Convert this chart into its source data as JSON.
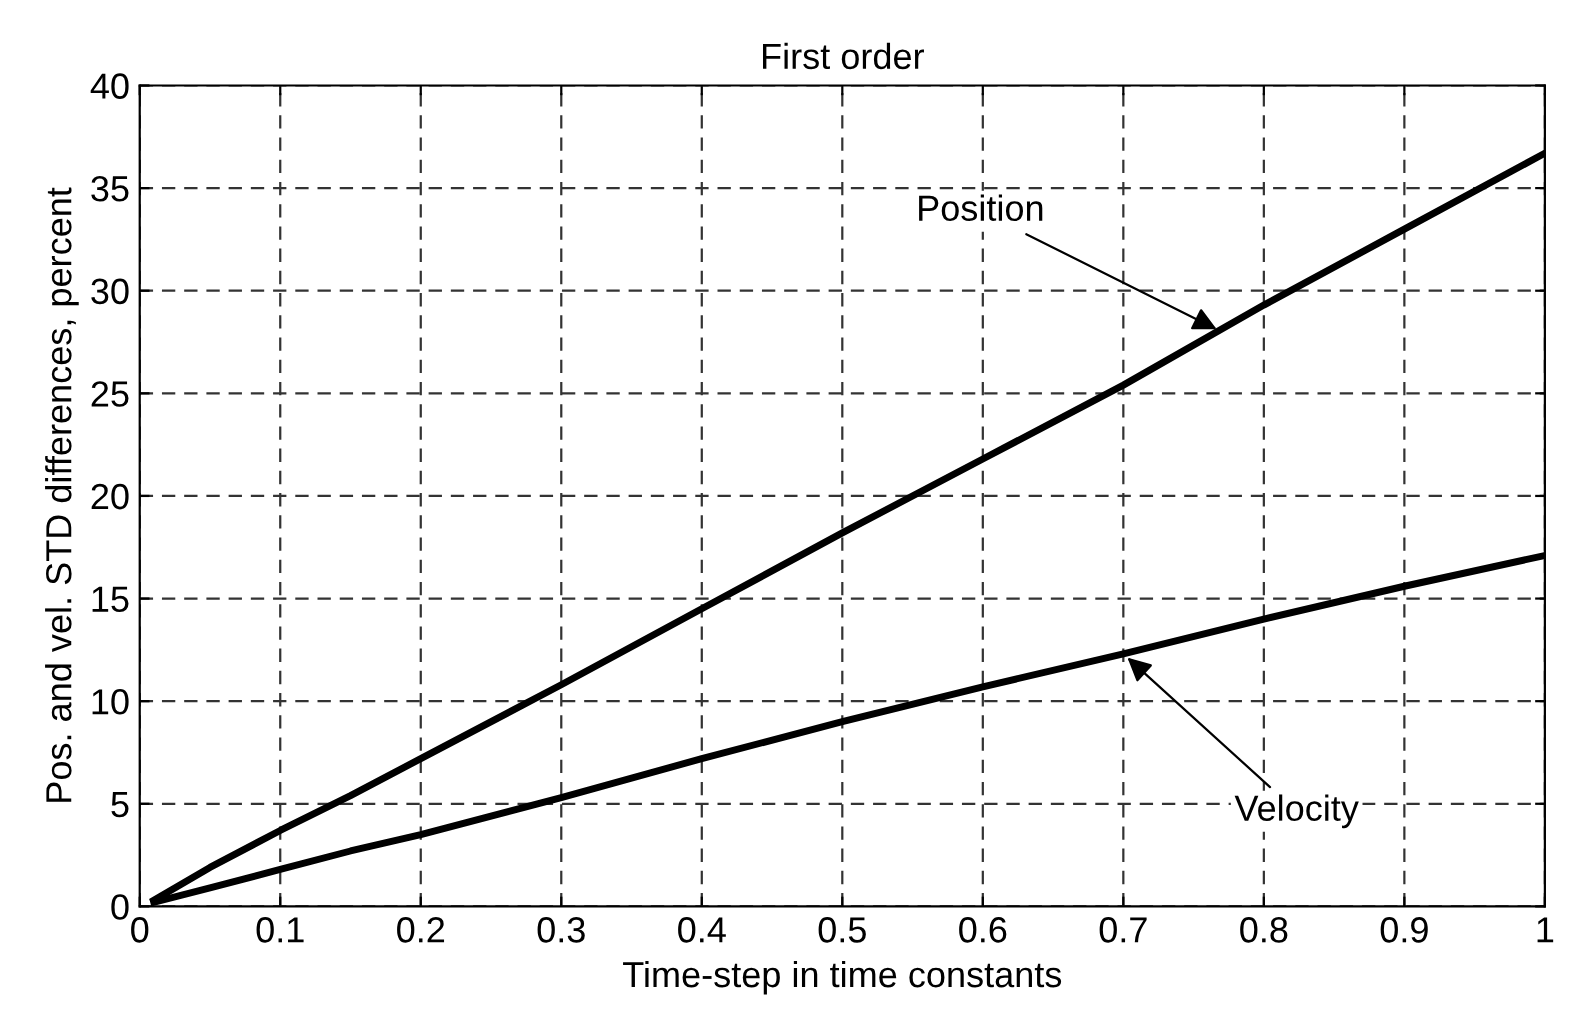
{
  "chart_data": {
    "type": "line",
    "title": "First order",
    "xlabel": "Time-step in time constants",
    "ylabel": "Pos. and vel. STD differences, percent",
    "x": [
      0.01,
      0.05,
      0.1,
      0.15,
      0.2,
      0.3,
      0.4,
      0.5,
      0.6,
      0.7,
      0.8,
      0.9,
      1.0
    ],
    "series": [
      {
        "color": "#000000",
        "values": [
          0.3,
          1.9,
          3.7,
          5.4,
          7.2,
          10.8,
          14.5,
          18.2,
          21.8,
          25.4,
          29.3,
          33.0,
          36.7
        ]
      },
      {
        "color": "#000000",
        "values": [
          0.2,
          0.9,
          1.8,
          2.7,
          3.5,
          5.3,
          7.2,
          9.0,
          10.7,
          12.3,
          14.0,
          15.6,
          17.1
        ]
      }
    ],
    "annotations": [
      {
        "text": "Position",
        "x": 0.77,
        "y": 28
      },
      {
        "text": "Velocity",
        "x": 0.7,
        "y": 12.3
      }
    ],
    "xlim": [
      0,
      1
    ],
    "xticks": [
      0,
      0.1,
      0.2,
      0.3,
      0.4,
      0.5,
      0.6,
      0.7,
      0.8,
      0.9,
      1
    ],
    "ylim": [
      0,
      40
    ],
    "yticks": [
      0,
      5,
      10,
      15,
      20,
      25,
      30,
      35,
      40
    ],
    "grid": true,
    "line_style": "solid",
    "marker": "none"
  }
}
